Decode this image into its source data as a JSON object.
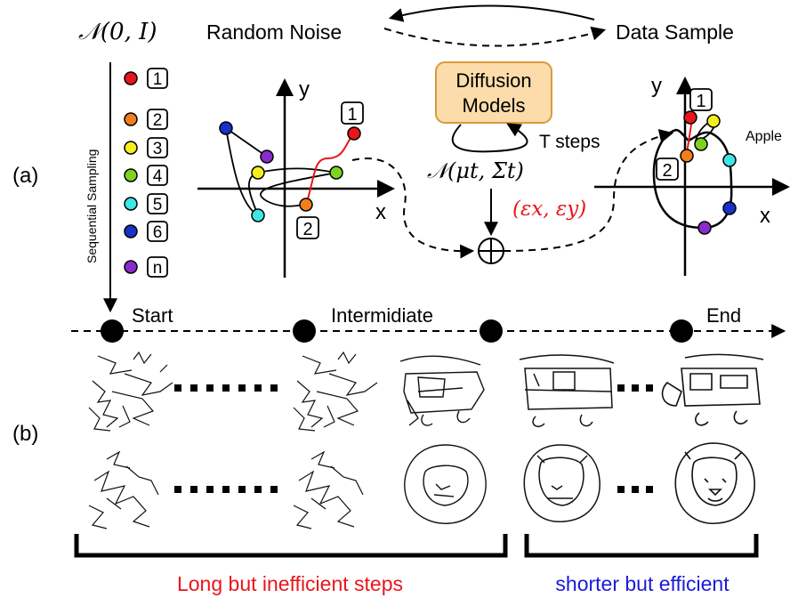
{
  "panel_labels": {
    "a": "(a)",
    "b": "(b)"
  },
  "top": {
    "noise_dist": "𝒩(0, I)",
    "random_noise": "Random Noise",
    "data_sample": "Data Sample"
  },
  "sequential_sampling": "Sequential Sampling",
  "point_labels": [
    "1",
    "2",
    "3",
    "4",
    "5",
    "6",
    "n"
  ],
  "point_colors": [
    "#e8161b",
    "#f07f1b",
    "#f4ef1c",
    "#7ed321",
    "#3ee6e6",
    "#1732c9",
    "#8a2bcc"
  ],
  "diffusion": {
    "box_line1": "Diffusion",
    "box_line2": "Models",
    "box_fill": "#fbdcaa",
    "box_stroke": "#d99a3c",
    "t_steps": "T steps",
    "posterior": "𝒩(μt, Σt)",
    "epsilon": "(εx, εy)",
    "epsilon_color": "#e8161b"
  },
  "axes": {
    "x": "x",
    "y": "y"
  },
  "apple_label": "Apple",
  "timeline": {
    "start": "Start",
    "intermediate": "Intermidiate",
    "end": "End"
  },
  "captions": {
    "long": "Long but inefficient steps",
    "long_color": "#e8161b",
    "short": "shorter but efficient",
    "short_color": "#1a1adb"
  }
}
